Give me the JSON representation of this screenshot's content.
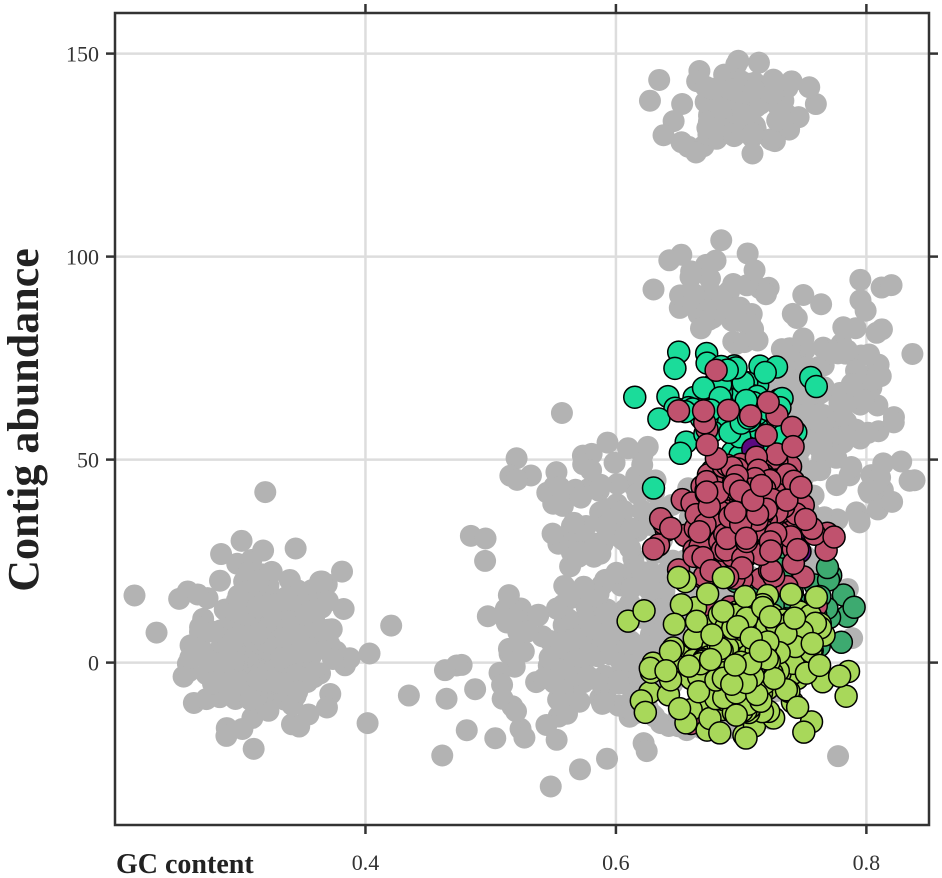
{
  "chart_data": {
    "type": "scatter",
    "xlabel": "GC content",
    "ylabel": "Contig abundance",
    "xlim": [
      0.2,
      0.85
    ],
    "ylim": [
      -40,
      160
    ],
    "x_ticks": [
      0.4,
      0.6,
      0.8
    ],
    "y_ticks": [
      0,
      50,
      100,
      150
    ],
    "x_tick_labels": [
      "0.4",
      "0.6",
      "0.8"
    ],
    "y_tick_labels": [
      "0",
      "50",
      "100",
      "150"
    ],
    "grid": true,
    "legend": "none",
    "series": [
      {
        "color": "#b3b3b3",
        "clusters": [
          {
            "cx": 0.32,
            "cy": 5,
            "sx": 0.03,
            "sy": 10,
            "n": 260
          },
          {
            "cx": 0.62,
            "cy": 0,
            "sx": 0.07,
            "sy": 9,
            "n": 260
          },
          {
            "cx": 0.6,
            "cy": 30,
            "sx": 0.05,
            "sy": 14,
            "n": 140
          },
          {
            "cx": 0.7,
            "cy": 137,
            "sx": 0.025,
            "sy": 6,
            "n": 90
          },
          {
            "cx": 0.67,
            "cy": 90,
            "sx": 0.022,
            "sy": 6,
            "n": 40
          },
          {
            "cx": 0.77,
            "cy": 60,
            "sx": 0.03,
            "sy": 16,
            "n": 160
          }
        ],
        "points": [
          [
            0.32,
            42
          ]
        ]
      },
      {
        "color": "#1bdc9a",
        "clusters": [
          {
            "cx": 0.69,
            "cy": 63,
            "sx": 0.025,
            "sy": 6,
            "n": 90
          }
        ],
        "points": [
          [
            0.63,
            43
          ],
          [
            0.76,
            68
          ]
        ]
      },
      {
        "color": "#5b0a82",
        "clusters": [
          {
            "cx": 0.73,
            "cy": 38,
            "sx": 0.015,
            "sy": 7,
            "n": 50
          }
        ],
        "points": []
      },
      {
        "color": "#3daa70",
        "clusters": [
          {
            "cx": 0.74,
            "cy": 14,
            "sx": 0.025,
            "sy": 6,
            "n": 50
          }
        ],
        "points": [
          [
            0.78,
            5
          ]
        ]
      },
      {
        "color": "#c0526e",
        "clusters": [
          {
            "cx": 0.7,
            "cy": 35,
            "sx": 0.025,
            "sy": 10,
            "n": 230
          }
        ],
        "points": [
          [
            0.68,
            72
          ],
          [
            0.72,
            56
          ],
          [
            0.67,
            62
          ],
          [
            0.65,
            62
          ],
          [
            0.63,
            28
          ],
          [
            0.76,
            14
          ],
          [
            0.66,
            -15
          ]
        ]
      },
      {
        "color": "#a8d85a",
        "clusters": [
          {
            "cx": 0.7,
            "cy": 0,
            "sx": 0.03,
            "sy": 8,
            "n": 250
          }
        ],
        "points": [
          [
            0.65,
            21
          ],
          [
            0.64,
            -2
          ]
        ]
      }
    ]
  }
}
